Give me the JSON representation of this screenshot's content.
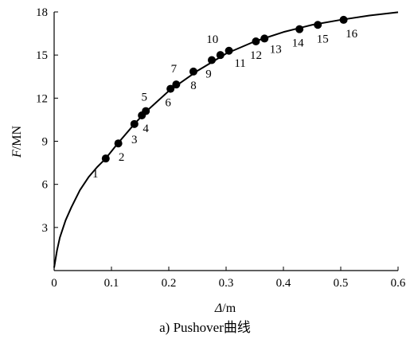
{
  "caption": "a) Pushover曲线",
  "chart_data": {
    "type": "scatter",
    "xlabel_symbol": "Δ",
    "xlabel_unit": "/m",
    "ylabel_symbol": "F",
    "ylabel_unit": "/MN",
    "xlim": [
      0,
      0.6
    ],
    "ylim": [
      0,
      18
    ],
    "x_ticks": [
      "0",
      "0.1",
      "0.2",
      "0.3",
      "0.4",
      "0.5",
      "0.6"
    ],
    "y_ticks": [
      "3",
      "6",
      "9",
      "12",
      "15",
      "18"
    ],
    "grid": false,
    "curve": {
      "x": [
        0,
        0.005,
        0.01,
        0.02,
        0.03,
        0.045,
        0.06,
        0.075,
        0.09,
        0.11,
        0.14,
        0.16,
        0.2,
        0.25,
        0.3,
        0.35,
        0.4,
        0.45,
        0.5,
        0.55,
        0.6
      ],
      "y": [
        0.2,
        1.4,
        2.3,
        3.5,
        4.4,
        5.6,
        6.5,
        7.2,
        7.8,
        8.8,
        10.2,
        11.05,
        12.5,
        13.9,
        15.1,
        15.95,
        16.6,
        17.1,
        17.45,
        17.75,
        17.98
      ]
    },
    "points": [
      {
        "label": "1",
        "x": 0.09,
        "y": 7.8
      },
      {
        "label": "2",
        "x": 0.112,
        "y": 8.85
      },
      {
        "label": "3",
        "x": 0.14,
        "y": 10.2
      },
      {
        "label": "4",
        "x": 0.153,
        "y": 10.8
      },
      {
        "label": "5",
        "x": 0.16,
        "y": 11.1
      },
      {
        "label": "6",
        "x": 0.203,
        "y": 12.65
      },
      {
        "label": "7",
        "x": 0.213,
        "y": 12.95
      },
      {
        "label": "8",
        "x": 0.243,
        "y": 13.85
      },
      {
        "label": "9",
        "x": 0.275,
        "y": 14.65
      },
      {
        "label": "10",
        "x": 0.29,
        "y": 15.0
      },
      {
        "label": "11",
        "x": 0.305,
        "y": 15.3
      },
      {
        "label": "12",
        "x": 0.352,
        "y": 15.95
      },
      {
        "label": "13",
        "x": 0.367,
        "y": 16.15
      },
      {
        "label": "14",
        "x": 0.428,
        "y": 16.8
      },
      {
        "label": "15",
        "x": 0.46,
        "y": 17.1
      },
      {
        "label": "16",
        "x": 0.505,
        "y": 17.45
      }
    ]
  }
}
